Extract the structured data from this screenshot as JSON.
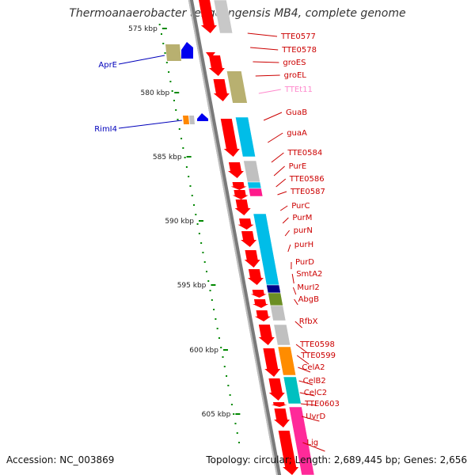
{
  "title": "Thermoanaerobacter tengcongensis MB4, complete genome",
  "accession": "Accession: NC_003869",
  "stats": "Topology: circular; Length: 2,689,445 bp; Genes: 2,656",
  "colors": {
    "gene_red": "#ff0000",
    "label_red": "#cc0000",
    "rna_label": "#ff88cc",
    "reg_label": "#0000bb",
    "ruler": "#008800",
    "backbone": "#7a7a7a"
  },
  "ruler_ticks": [
    "575 kbp",
    "580 kbp",
    "585 kbp",
    "590 kbp",
    "595 kbp",
    "600 kbp",
    "605 kbp"
  ],
  "left_labels": [
    "AprE",
    "RimI4"
  ],
  "right_labels": [
    {
      "text": "TTE0577",
      "kind": "gene"
    },
    {
      "text": "TTE0578",
      "kind": "gene"
    },
    {
      "text": "groES",
      "kind": "gene"
    },
    {
      "text": "groEL",
      "kind": "gene"
    },
    {
      "text": "TTEt11",
      "kind": "rna"
    },
    {
      "text": "GuaB",
      "kind": "gene"
    },
    {
      "text": "guaA",
      "kind": "gene"
    },
    {
      "text": "TTE0584",
      "kind": "gene"
    },
    {
      "text": "PurE",
      "kind": "gene"
    },
    {
      "text": "TTE0586",
      "kind": "gene"
    },
    {
      "text": "TTE0587",
      "kind": "gene"
    },
    {
      "text": "PurC",
      "kind": "gene"
    },
    {
      "text": "PurM",
      "kind": "gene"
    },
    {
      "text": "purN",
      "kind": "gene"
    },
    {
      "text": "purH",
      "kind": "gene"
    },
    {
      "text": "PurD",
      "kind": "gene"
    },
    {
      "text": "SmtA2",
      "kind": "gene"
    },
    {
      "text": "MurI2",
      "kind": "gene"
    },
    {
      "text": "AbgB",
      "kind": "gene"
    },
    {
      "text": "RfbX",
      "kind": "gene"
    },
    {
      "text": "TTE0598",
      "kind": "gene"
    },
    {
      "text": "TTE0599",
      "kind": "gene"
    },
    {
      "text": "CelA2",
      "kind": "gene"
    },
    {
      "text": "CelB2",
      "kind": "gene"
    },
    {
      "text": "CelC2",
      "kind": "gene"
    },
    {
      "text": "TTE0603",
      "kind": "gene"
    },
    {
      "text": "UvrD",
      "kind": "gene"
    },
    {
      "text": "Lig",
      "kind": "gene"
    }
  ]
}
